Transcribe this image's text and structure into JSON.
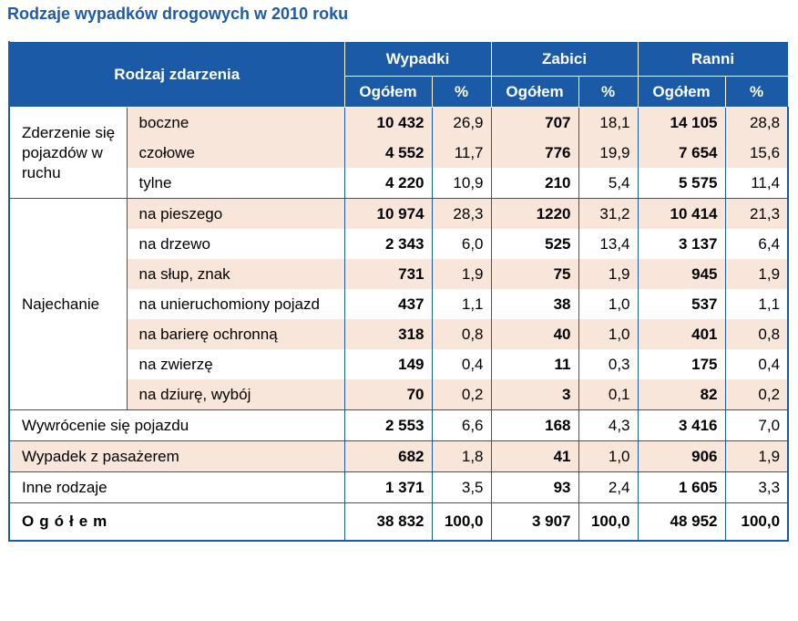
{
  "title": "Rodzaje wypadków drogowych w 2010 roku",
  "header": {
    "rodzaj": "Rodzaj zdarzenia",
    "groups": [
      "Wypadki",
      "Zabici",
      "Ranni"
    ],
    "sub_total": "Ogółem",
    "sub_pct": "%"
  },
  "rows": [
    {
      "cat": "Zderzenie się pojazdów w ruchu",
      "sub": "boczne",
      "v": [
        "10 432",
        "26,9",
        "707",
        "18,1",
        "14 105",
        "28,8"
      ]
    },
    {
      "sub": "czołowe",
      "v": [
        "4 552",
        "11,7",
        "776",
        "19,9",
        "7 654",
        "15,6"
      ]
    },
    {
      "sub": "tylne",
      "v": [
        "4 220",
        "10,9",
        "210",
        "5,4",
        "5 575",
        "11,4"
      ]
    },
    {
      "cat": "Najechanie",
      "sub": "na pieszego",
      "v": [
        "10 974",
        "28,3",
        "1220",
        "31,2",
        "10 414",
        "21,3"
      ]
    },
    {
      "sub": "na drzewo",
      "v": [
        "2 343",
        "6,0",
        "525",
        "13,4",
        "3 137",
        "6,4"
      ]
    },
    {
      "sub": "na słup, znak",
      "v": [
        "731",
        "1,9",
        "75",
        "1,9",
        "945",
        "1,9"
      ]
    },
    {
      "sub": "na unieruchomiony pojazd",
      "v": [
        "437",
        "1,1",
        "38",
        "1,0",
        "537",
        "1,1"
      ]
    },
    {
      "sub": "na barierę ochronną",
      "v": [
        "318",
        "0,8",
        "40",
        "1,0",
        "401",
        "0,8"
      ]
    },
    {
      "sub": "na zwierzę",
      "v": [
        "149",
        "0,4",
        "11",
        "0,3",
        "175",
        "0,4"
      ]
    },
    {
      "sub": "na dziurę, wybój",
      "v": [
        "70",
        "0,2",
        "3",
        "0,1",
        "82",
        "0,2"
      ]
    },
    {
      "cat": "Wywrócenie się pojazdu",
      "v": [
        "2 553",
        "6,6",
        "168",
        "4,3",
        "3 416",
        "7,0"
      ]
    },
    {
      "cat": "Wypadek z pasażerem",
      "v": [
        "682",
        "1,8",
        "41",
        "1,0",
        "906",
        "1,9"
      ]
    },
    {
      "cat": "Inne rodzaje",
      "v": [
        "1 371",
        "3,5",
        "93",
        "2,4",
        "1 605",
        "3,3"
      ]
    }
  ],
  "total": {
    "label": "Ogółem",
    "v": [
      "38 832",
      "100,0",
      "3 907",
      "100,0",
      "48 952",
      "100,0"
    ]
  }
}
